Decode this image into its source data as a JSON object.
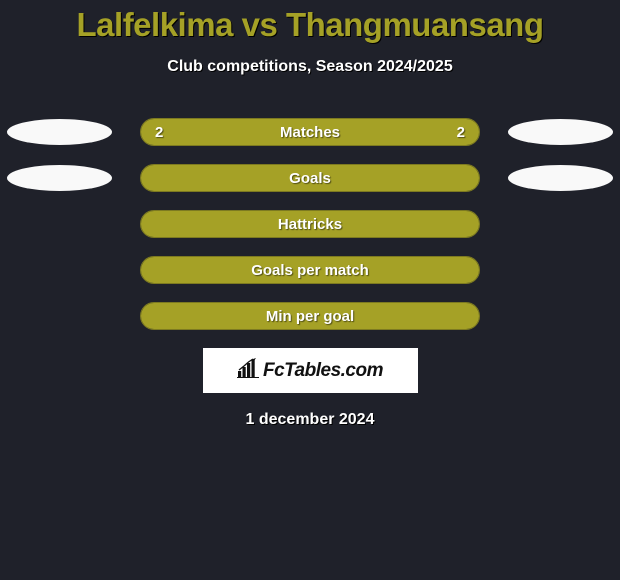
{
  "title": "Lalfelkima vs Thangmuansang",
  "subtitle": "Club competitions, Season 2024/2025",
  "date": "1 december 2024",
  "logo_text": "FcTables.com",
  "colors": {
    "background": "#1f212a",
    "accent": "#a5a126",
    "bar_border": "#7d7a20",
    "ellipse": "#f9f9f9",
    "text": "#ffffff",
    "logo_bg": "#ffffff",
    "logo_text": "#111111"
  },
  "rows": [
    {
      "label": "Matches",
      "left_value": "2",
      "right_value": "2",
      "left_ellipse": true,
      "right_ellipse": true,
      "left_fill_pct": 50,
      "right_fill_pct": 50
    },
    {
      "label": "Goals",
      "left_value": "",
      "right_value": "",
      "left_ellipse": true,
      "right_ellipse": true,
      "left_fill_pct": 100,
      "right_fill_pct": 0
    },
    {
      "label": "Hattricks",
      "left_value": "",
      "right_value": "",
      "left_ellipse": false,
      "right_ellipse": false,
      "left_fill_pct": 100,
      "right_fill_pct": 0
    },
    {
      "label": "Goals per match",
      "left_value": "",
      "right_value": "",
      "left_ellipse": false,
      "right_ellipse": false,
      "left_fill_pct": 100,
      "right_fill_pct": 0
    },
    {
      "label": "Min per goal",
      "left_value": "",
      "right_value": "",
      "left_ellipse": false,
      "right_ellipse": false,
      "left_fill_pct": 100,
      "right_fill_pct": 0
    }
  ]
}
